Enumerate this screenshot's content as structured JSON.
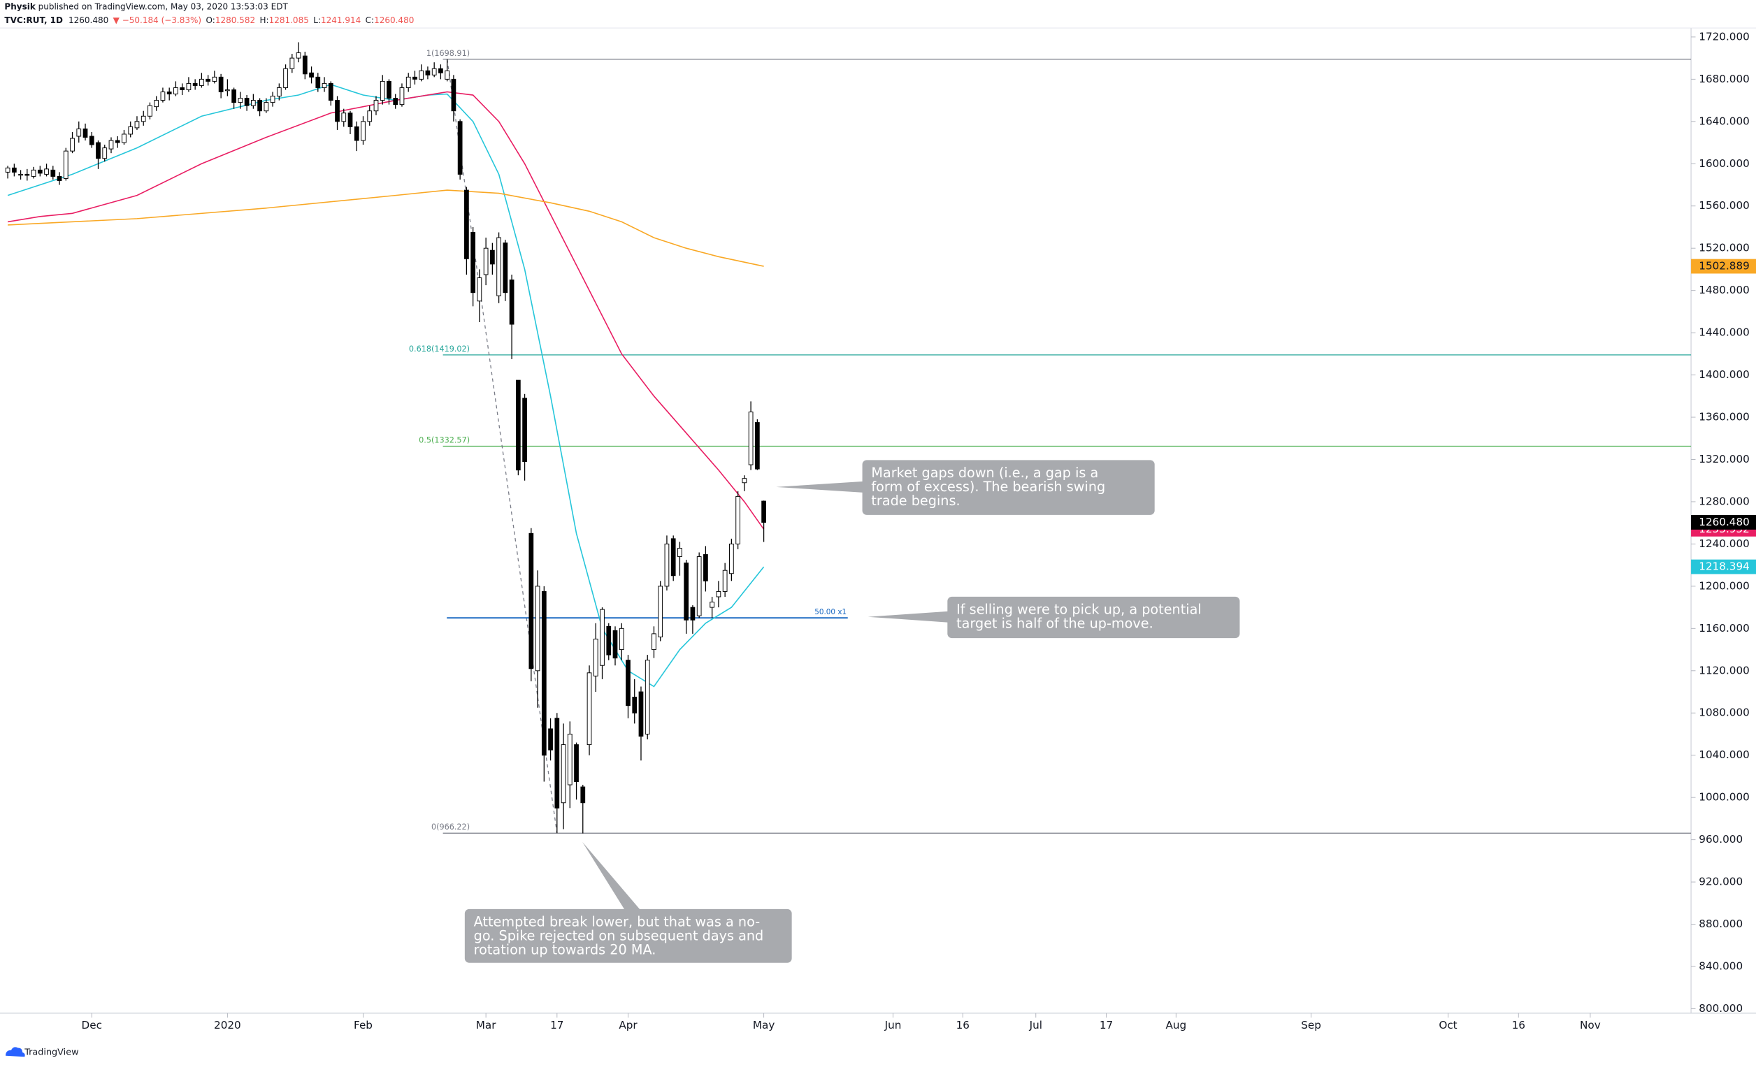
{
  "header": {
    "author": "Physik",
    "published": " published on TradingView.com, May 03, 2020 13:53:03 EDT",
    "symbol": "TVC:RUT, 1D",
    "last": "1260.480",
    "change": "▼ −50.184 (−3.83%)",
    "ohlc": [
      {
        "key": "O:",
        "value": "1280.582"
      },
      {
        "key": "H:",
        "value": "1281.085"
      },
      {
        "key": "L:",
        "value": "1241.914"
      },
      {
        "key": "C:",
        "value": "1260.480"
      }
    ]
  },
  "chart_data": {
    "type": "candlestick",
    "xlim": [
      -1.2,
      260.5
    ],
    "ylim": [
      795.8,
      1728.5
    ],
    "xticks": [
      {
        "value": 13,
        "label": "Dec"
      },
      {
        "value": 34,
        "label": "2020"
      },
      {
        "value": 55,
        "label": "Feb"
      },
      {
        "value": 74,
        "label": "Mar"
      },
      {
        "value": 85,
        "label": "17"
      },
      {
        "value": 96,
        "label": "Apr"
      },
      {
        "value": 117,
        "label": "May"
      },
      {
        "value": 137,
        "label": "Jun"
      },
      {
        "value": 147.8,
        "label": "16"
      },
      {
        "value": 159.1,
        "label": "Jul"
      },
      {
        "value": 170,
        "label": "17"
      },
      {
        "value": 180.8,
        "label": "Aug"
      },
      {
        "value": 201.7,
        "label": "Sep"
      },
      {
        "value": 222.9,
        "label": "Oct"
      },
      {
        "value": 233.8,
        "label": "16"
      },
      {
        "value": 244.9,
        "label": "Nov"
      }
    ],
    "yticks": [
      {
        "value": 800,
        "label": "800.000"
      },
      {
        "value": 840,
        "label": "840.000"
      },
      {
        "value": 880,
        "label": "880.000"
      },
      {
        "value": 920,
        "label": "920.000"
      },
      {
        "value": 960,
        "label": "960.000"
      },
      {
        "value": 1000,
        "label": "1000.000"
      },
      {
        "value": 1040,
        "label": "1040.000"
      },
      {
        "value": 1080,
        "label": "1080.000"
      },
      {
        "value": 1120,
        "label": "1120.000"
      },
      {
        "value": 1160,
        "label": "1160.000"
      },
      {
        "value": 1200,
        "label": "1200.000"
      },
      {
        "value": 1240,
        "label": "1240.000"
      },
      {
        "value": 1280,
        "label": "1280.000"
      },
      {
        "value": 1320,
        "label": "1320.000"
      },
      {
        "value": 1360,
        "label": "1360.000"
      },
      {
        "value": 1400,
        "label": "1400.000"
      },
      {
        "value": 1440,
        "label": "1440.000"
      },
      {
        "value": 1480,
        "label": "1480.000"
      },
      {
        "value": 1520,
        "label": "1520.000"
      },
      {
        "value": 1560,
        "label": "1560.000"
      },
      {
        "value": 1600,
        "label": "1600.000"
      },
      {
        "value": 1640,
        "label": "1640.000"
      },
      {
        "value": 1680,
        "label": "1680.000"
      },
      {
        "value": 1720,
        "label": "1720.000"
      }
    ],
    "grid": false,
    "up_color": "#ffffff",
    "down_color": "#000000",
    "x": [
      0,
      1,
      2,
      3,
      4,
      5,
      6,
      7,
      8,
      9,
      10,
      11,
      12,
      13,
      14,
      15,
      16,
      17,
      18,
      19,
      20,
      21,
      22,
      23,
      24,
      25,
      26,
      27,
      28,
      29,
      30,
      31,
      32,
      33,
      34,
      35,
      36,
      37,
      38,
      39,
      40,
      41,
      42,
      43,
      44,
      45,
      46,
      47,
      48,
      49,
      50,
      51,
      52,
      53,
      54,
      55,
      56,
      57,
      58,
      59,
      60,
      61,
      62,
      63,
      64,
      65,
      66,
      67,
      68,
      69,
      70,
      71,
      72,
      73,
      74,
      75,
      76,
      77,
      78,
      79,
      80,
      81,
      82,
      83,
      84,
      85,
      86,
      87,
      88,
      89,
      90,
      91,
      92,
      93,
      94,
      95,
      96,
      97,
      98,
      99,
      100,
      101,
      102,
      103,
      104,
      105,
      106,
      107,
      108,
      109,
      110,
      111,
      112,
      113,
      114,
      115,
      116,
      117
    ],
    "candles": [
      [
        1592,
        1598,
        1586,
        1596
      ],
      [
        1596,
        1600,
        1588,
        1592
      ],
      [
        1590,
        1594,
        1585,
        1590
      ],
      [
        1590,
        1595,
        1584,
        1589
      ],
      [
        1588,
        1597,
        1586,
        1594
      ],
      [
        1594,
        1598,
        1588,
        1591
      ],
      [
        1590,
        1600,
        1588,
        1595
      ],
      [
        1594,
        1598,
        1585,
        1588
      ],
      [
        1588,
        1592,
        1580,
        1584
      ],
      [
        1586,
        1615,
        1584,
        1612
      ],
      [
        1612,
        1630,
        1610,
        1624
      ],
      [
        1626,
        1640,
        1620,
        1633
      ],
      [
        1633,
        1638,
        1622,
        1625
      ],
      [
        1626,
        1630,
        1615,
        1618
      ],
      [
        1620,
        1622,
        1595,
        1605
      ],
      [
        1605,
        1618,
        1602,
        1615
      ],
      [
        1614,
        1625,
        1610,
        1622
      ],
      [
        1622,
        1626,
        1615,
        1620
      ],
      [
        1620,
        1632,
        1618,
        1628
      ],
      [
        1628,
        1640,
        1625,
        1635
      ],
      [
        1634,
        1645,
        1632,
        1640
      ],
      [
        1640,
        1650,
        1636,
        1645
      ],
      [
        1645,
        1658,
        1642,
        1655
      ],
      [
        1654,
        1664,
        1650,
        1660
      ],
      [
        1660,
        1672,
        1658,
        1668
      ],
      [
        1668,
        1672,
        1660,
        1666
      ],
      [
        1666,
        1678,
        1664,
        1672
      ],
      [
        1672,
        1676,
        1665,
        1670
      ],
      [
        1670,
        1682,
        1668,
        1676
      ],
      [
        1676,
        1680,
        1670,
        1674
      ],
      [
        1674,
        1686,
        1672,
        1680
      ],
      [
        1680,
        1684,
        1674,
        1678
      ],
      [
        1678,
        1688,
        1676,
        1682
      ],
      [
        1682,
        1685,
        1662,
        1668
      ],
      [
        1670,
        1680,
        1664,
        1670
      ],
      [
        1670,
        1672,
        1652,
        1658
      ],
      [
        1658,
        1668,
        1652,
        1662
      ],
      [
        1662,
        1665,
        1650,
        1655
      ],
      [
        1655,
        1666,
        1652,
        1660
      ],
      [
        1660,
        1662,
        1645,
        1650
      ],
      [
        1650,
        1662,
        1648,
        1658
      ],
      [
        1658,
        1668,
        1654,
        1664
      ],
      [
        1664,
        1676,
        1660,
        1672
      ],
      [
        1672,
        1694,
        1670,
        1690
      ],
      [
        1690,
        1704,
        1686,
        1700
      ],
      [
        1700,
        1715,
        1696,
        1705
      ],
      [
        1702,
        1706,
        1680,
        1685
      ],
      [
        1686,
        1692,
        1676,
        1682
      ],
      [
        1682,
        1686,
        1668,
        1672
      ],
      [
        1672,
        1682,
        1668,
        1676
      ],
      [
        1676,
        1678,
        1655,
        1660
      ],
      [
        1660,
        1664,
        1632,
        1640
      ],
      [
        1640,
        1652,
        1635,
        1648
      ],
      [
        1648,
        1650,
        1628,
        1635
      ],
      [
        1635,
        1640,
        1612,
        1622
      ],
      [
        1622,
        1645,
        1618,
        1640
      ],
      [
        1640,
        1655,
        1636,
        1650
      ],
      [
        1650,
        1664,
        1646,
        1660
      ],
      [
        1660,
        1684,
        1656,
        1678
      ],
      [
        1678,
        1680,
        1656,
        1662
      ],
      [
        1662,
        1666,
        1652,
        1656
      ],
      [
        1656,
        1676,
        1654,
        1672
      ],
      [
        1672,
        1686,
        1668,
        1682
      ],
      [
        1682,
        1688,
        1675,
        1680
      ],
      [
        1680,
        1694,
        1678,
        1688
      ],
      [
        1688,
        1692,
        1680,
        1684
      ],
      [
        1684,
        1696,
        1682,
        1690
      ],
      [
        1690,
        1694,
        1680,
        1686
      ],
      [
        1680,
        1698.91,
        1678,
        1688
      ],
      [
        1680,
        1684,
        1640,
        1650
      ],
      [
        1640,
        1642,
        1585,
        1590
      ],
      [
        1575,
        1578,
        1495,
        1510
      ],
      [
        1535,
        1540,
        1465,
        1478
      ],
      [
        1470,
        1500,
        1450,
        1492
      ],
      [
        1495,
        1530,
        1485,
        1520
      ],
      [
        1518,
        1525,
        1495,
        1505
      ],
      [
        1475,
        1535,
        1468,
        1530
      ],
      [
        1525,
        1528,
        1470,
        1478
      ],
      [
        1490,
        1495,
        1415,
        1448
      ],
      [
        1395,
        1395,
        1305,
        1310
      ],
      [
        1378,
        1382,
        1300,
        1318
      ],
      [
        1250,
        1255,
        1110,
        1122
      ],
      [
        1120,
        1215,
        1085,
        1200
      ],
      [
        1195,
        1200,
        1015,
        1040
      ],
      [
        1065,
        1075,
        1035,
        1045
      ],
      [
        1075,
        1080,
        966.22,
        990
      ],
      [
        995,
        1070,
        970,
        1050
      ],
      [
        1012,
        1072,
        990,
        1060
      ],
      [
        1050,
        1052,
        998,
        1015
      ],
      [
        1010,
        1012,
        966,
        995
      ],
      [
        1050,
        1125,
        1040,
        1118
      ],
      [
        1115,
        1165,
        1100,
        1150
      ],
      [
        1125,
        1180,
        1112,
        1178
      ],
      [
        1162,
        1165,
        1130,
        1135
      ],
      [
        1158,
        1162,
        1125,
        1132
      ],
      [
        1140,
        1165,
        1130,
        1160
      ],
      [
        1130,
        1135,
        1075,
        1087
      ],
      [
        1095,
        1112,
        1070,
        1080
      ],
      [
        1100,
        1105,
        1035,
        1058
      ],
      [
        1060,
        1135,
        1055,
        1130
      ],
      [
        1140,
        1162,
        1132,
        1155
      ],
      [
        1152,
        1205,
        1148,
        1200
      ],
      [
        1200,
        1248,
        1196,
        1240
      ],
      [
        1245,
        1248,
        1205,
        1210
      ],
      [
        1228,
        1242,
        1210,
        1236
      ],
      [
        1222,
        1225,
        1155,
        1168
      ],
      [
        1180,
        1182,
        1155,
        1168
      ],
      [
        1172,
        1232,
        1170,
        1228
      ],
      [
        1230,
        1238,
        1195,
        1205
      ],
      [
        1180,
        1190,
        1170,
        1185
      ],
      [
        1190,
        1205,
        1180,
        1195
      ],
      [
        1195,
        1222,
        1190,
        1215
      ],
      [
        1212,
        1245,
        1205,
        1240
      ],
      [
        1240,
        1290,
        1235,
        1285
      ],
      [
        1298,
        1305,
        1290,
        1302
      ],
      [
        1315,
        1375,
        1310,
        1365
      ],
      [
        1355,
        1358,
        1310,
        1311
      ],
      [
        1280.582,
        1281.085,
        1241.914,
        1260.48
      ]
    ],
    "last_price": {
      "value": 1260.48,
      "label": "1260.480"
    },
    "series": [
      {
        "color": "#26c6da",
        "x": [
          0,
          10,
          20,
          30,
          40,
          45,
          50,
          55,
          60,
          65,
          68,
          72,
          76,
          80,
          84,
          88,
          92,
          96,
          100,
          104,
          108,
          112,
          117
        ],
        "values": [
          1570,
          1590,
          1615,
          1645,
          1660,
          1665,
          1675,
          1665,
          1660,
          1665,
          1666,
          1640,
          1590,
          1500,
          1380,
          1250,
          1160,
          1120,
          1105,
          1140,
          1165,
          1180,
          1218.394
        ]
      },
      {
        "color": "#e91e63",
        "x": [
          0,
          5,
          10,
          20,
          30,
          40,
          50,
          60,
          68,
          72,
          76,
          80,
          85,
          90,
          95,
          100,
          105,
          110,
          114,
          117
        ],
        "values": [
          1545,
          1550,
          1553,
          1570,
          1600,
          1625,
          1648,
          1660,
          1668,
          1665,
          1640,
          1600,
          1540,
          1480,
          1420,
          1380,
          1345,
          1310,
          1280,
          1253.952
        ]
      },
      {
        "color": "#f9a825",
        "x": [
          0,
          20,
          40,
          60,
          68,
          76,
          84,
          90,
          95,
          100,
          105,
          110,
          117
        ],
        "values": [
          1542,
          1548,
          1558,
          1570,
          1575,
          1572,
          1563,
          1555,
          1545,
          1530,
          1520,
          1512,
          1502.889
        ]
      }
    ],
    "fib_levels": [
      {
        "label": "1(1698.91)",
        "value": 1698.91,
        "color": "#787b86"
      },
      {
        "label": "0.618(1419.02)",
        "value": 1419.02,
        "color": "#26a69a"
      },
      {
        "label": "0.5(1332.57)",
        "value": 1332.57,
        "color": "#4caf50"
      },
      {
        "label": "0(966.22)",
        "value": 966.22,
        "color": "#787b86"
      }
    ],
    "target_line": {
      "label": "50.00 x1",
      "value": 1170,
      "color": "#1565c0"
    },
    "annotations": [
      {
        "lines": [
          "Market gaps down (i.e., a gap is a",
          "form of excess). The bearish swing",
          "trade begins."
        ]
      },
      {
        "lines": [
          "If selling were to pick up, a potential",
          "target is half of the up-move."
        ]
      },
      {
        "lines": [
          "Attempted break lower, but that was a no-",
          "go. Spike rejected on subsequent days and",
          "rotation up towards 20 MA."
        ]
      }
    ]
  },
  "footer": {
    "brand": "TradingView"
  }
}
